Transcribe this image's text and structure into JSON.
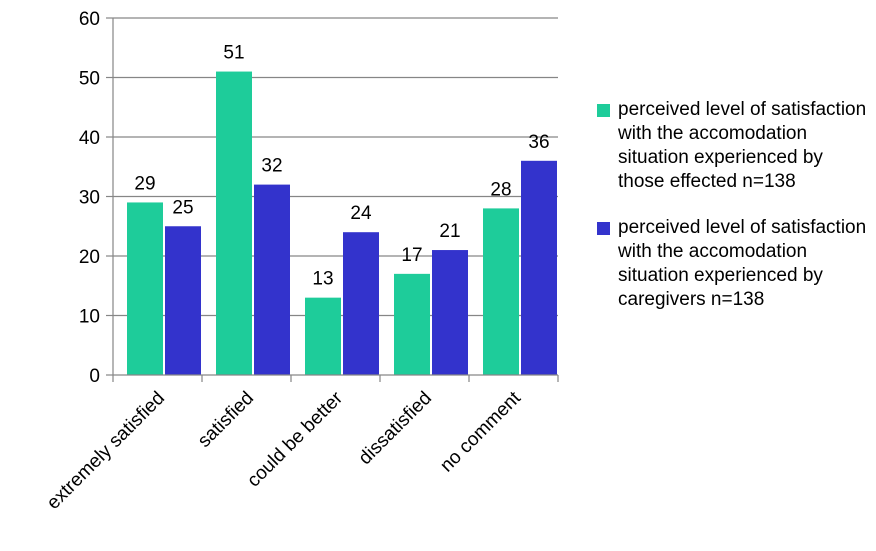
{
  "chart_data": {
    "type": "bar",
    "title": "",
    "xlabel": "",
    "ylabel": "",
    "ylim": [
      0,
      60
    ],
    "yticks": [
      0,
      10,
      20,
      30,
      40,
      50,
      60
    ],
    "grid": true,
    "legend_position": "right",
    "categories": [
      "extremely satisfied",
      "satisfied",
      "could be better",
      "dissatisfied",
      "no comment"
    ],
    "series": [
      {
        "name": "perceived level of satisfaction with the accomodation situation experienced by those effected n=138",
        "values": [
          29,
          51,
          13,
          17,
          28
        ],
        "color": "#1ecc9a"
      },
      {
        "name": "perceived level of satisfaction with the accomodation situation experienced by caregivers n=138",
        "values": [
          25,
          32,
          24,
          21,
          36
        ],
        "color": "#3333cc"
      }
    ]
  }
}
